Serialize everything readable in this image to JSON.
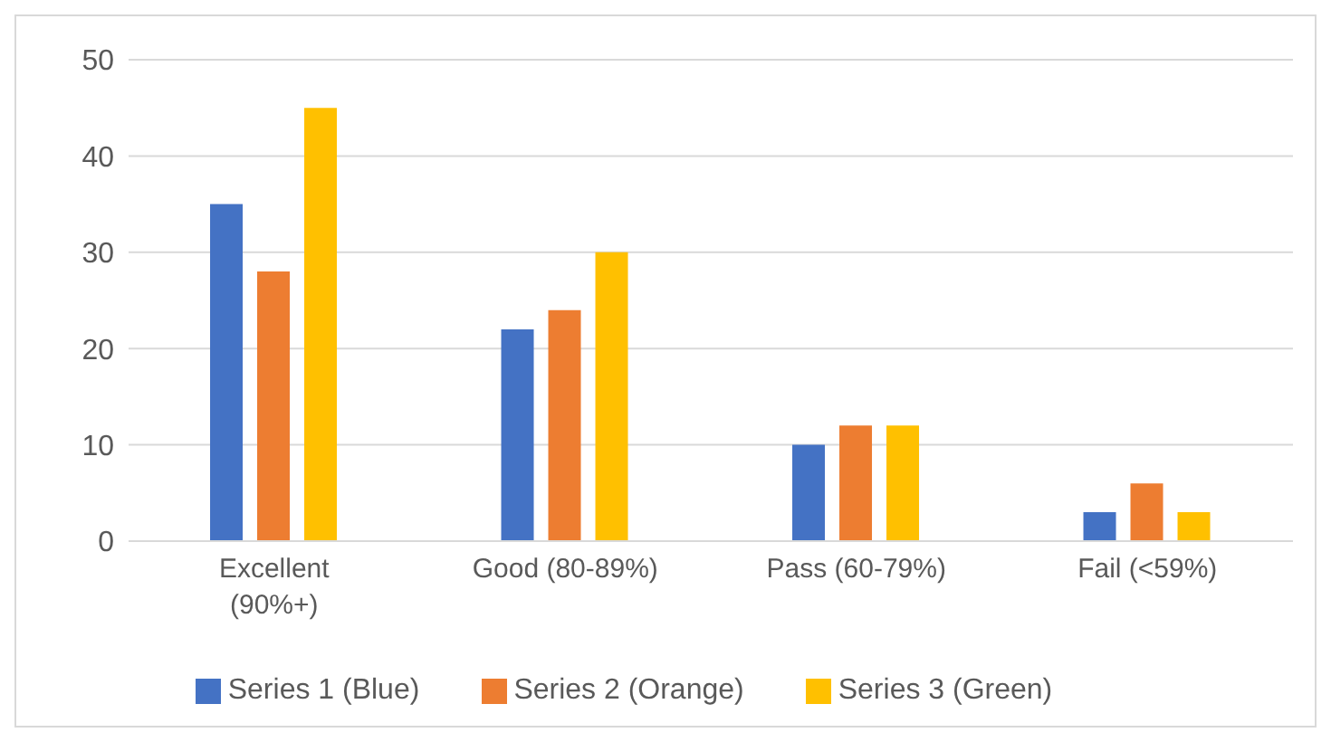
{
  "chart_data": {
    "type": "bar",
    "categories": [
      "Excellent (90%+)",
      "Good (80-89%)",
      "Pass (60-79%)",
      "Fail (<59%)"
    ],
    "series": [
      {
        "name": "Series 1 (Blue)",
        "color": "#4472c4",
        "values": [
          35,
          22,
          10,
          3
        ]
      },
      {
        "name": "Series 2 (Orange)",
        "color": "#ed7d31",
        "values": [
          28,
          24,
          12,
          6
        ]
      },
      {
        "name": "Series 3 (Green)",
        "color": "#ffc000",
        "values": [
          45,
          30,
          12,
          3
        ]
      }
    ],
    "ylim": [
      0,
      50
    ],
    "yticks": [
      0,
      10,
      20,
      30,
      40,
      50
    ],
    "grid": "y",
    "legend": "bottom"
  }
}
